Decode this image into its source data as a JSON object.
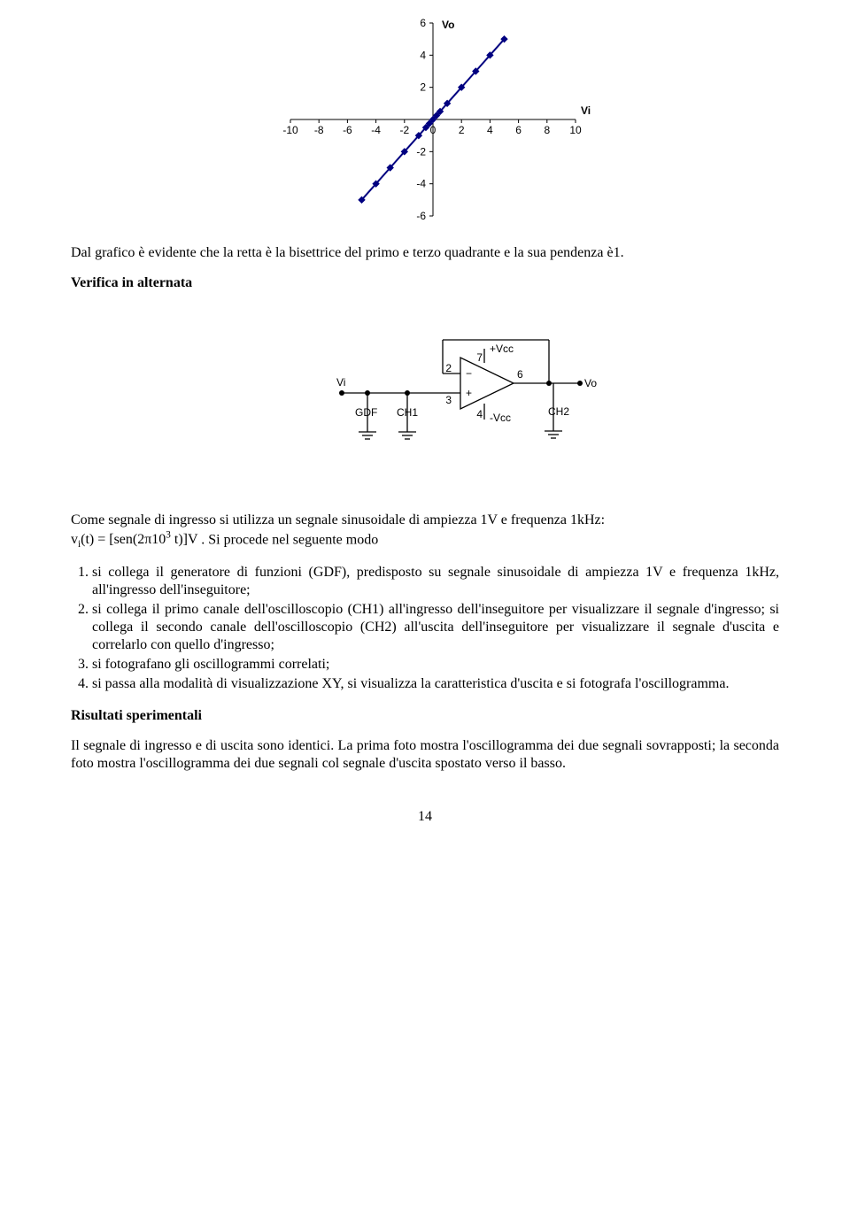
{
  "chart": {
    "type": "scatter-line",
    "x_axis_label": "Vi",
    "y_axis_label": "Vo",
    "x_ticks": [
      -10,
      -8,
      -6,
      -4,
      -2,
      0,
      2,
      4,
      6,
      8,
      10
    ],
    "y_ticks": [
      6,
      4,
      2,
      0,
      -2,
      -4,
      -6
    ],
    "points_x": [
      -5,
      -4,
      -3,
      -2,
      -1,
      -0.5,
      -0.25,
      0,
      0.25,
      0.5,
      1,
      2,
      3,
      4,
      5
    ],
    "points_y": [
      -5,
      -4,
      -3,
      -2,
      -1,
      -0.5,
      -0.25,
      0,
      0.25,
      0.5,
      1,
      2,
      3,
      4,
      5
    ],
    "xlim": [
      -10,
      10
    ],
    "ylim": [
      -6,
      6
    ],
    "axis_color": "#000000",
    "tick_font_size": 12,
    "axis_label_font_size": 12,
    "axis_label_font_weight": "bold",
    "line_color": "#000080",
    "line_width": 2,
    "marker_shape": "diamond",
    "marker_color": "#000080",
    "marker_size": 7,
    "background_color": "#ffffff",
    "axis_font_family": "Arial"
  },
  "text": {
    "intro": "Dal grafico è evidente che la retta è la bisettrice del primo e terzo quadrante e la sua pendenza è1.",
    "verify_heading": "Verifica in alternata",
    "signal_intro": "Come segnale di ingresso si utilizza un segnale sinusoidale di ampiezza 1V e frequenza 1kHz:",
    "formula_pre": "v",
    "formula_sub": "i",
    "formula_mid1": "(t) = [sen(2π10",
    "formula_sup": "3",
    "formula_mid2": " t)]V",
    "formula_tail": ". Si procede nel seguente modo",
    "steps": [
      "si collega il generatore di funzioni (GDF), predisposto su segnale sinusoidale di ampiezza 1V e frequenza 1kHz, all'ingresso dell'inseguitore;",
      "si collega il primo canale dell'oscilloscopio (CH1) all'ingresso dell'inseguitore per visualizzare il segnale d'ingresso; si collega il secondo canale dell'oscilloscopio (CH2) all'uscita dell'inseguitore per visualizzare il segnale d'uscita e correlarlo con quello d'ingresso;",
      "si fotografano gli oscillogrammi correlati;",
      "si passa alla modalità di visualizzazione XY, si visualizza la caratteristica d'uscita e si fotografa l'oscillogramma."
    ],
    "results_heading": "Risultati sperimentali",
    "results_para": "Il segnale di  ingresso e di uscita sono identici. La prima foto mostra l'oscillogramma dei due segnali sovrapposti; la seconda foto mostra l'oscillogramma dei due segnali col segnale d'uscita spostato verso il basso.",
    "page_number": "14"
  },
  "circuit": {
    "labels": {
      "vi": "Vi",
      "vo": "Vo",
      "gdf": "GDF",
      "ch1": "CH1",
      "ch2": "CH2",
      "pvcc": "+Vcc",
      "nvcc": "-Vcc",
      "pin2": "2",
      "pin3": "3",
      "pin4": "4",
      "pin6": "6",
      "pin7": "7",
      "minus": "−",
      "plus": "+"
    },
    "line_color": "#000000",
    "line_width": 1.3,
    "font_size": 12,
    "font_family": "Arial"
  }
}
